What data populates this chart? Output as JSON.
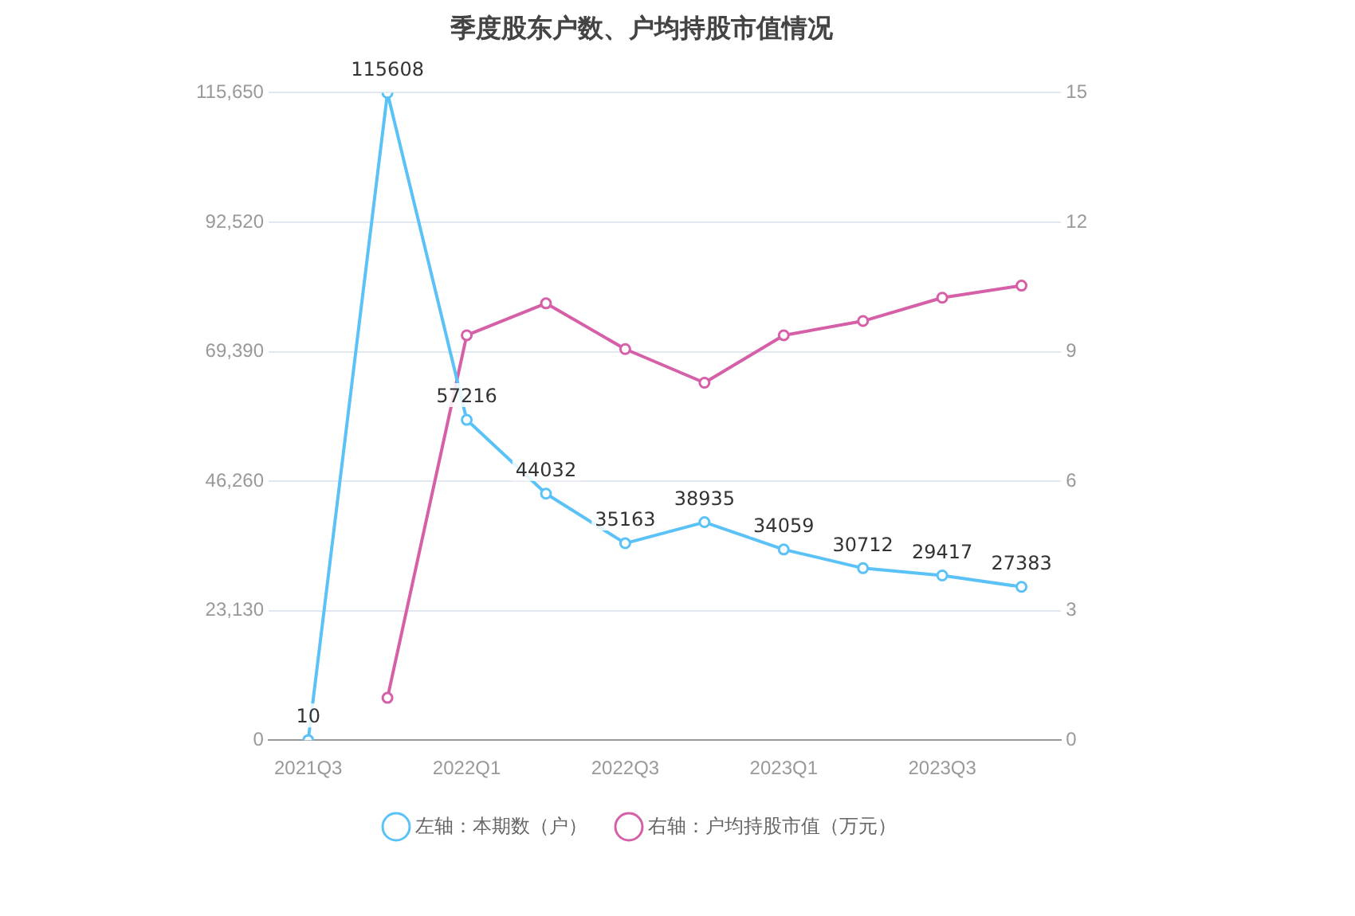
{
  "chart_data": {
    "type": "line",
    "title": "季度股东户数、户均持股市值情况",
    "categories": [
      "2021Q3",
      null,
      "2022Q1",
      null,
      "2022Q3",
      null,
      "2023Q1",
      null,
      "2023Q3",
      null
    ],
    "series": [
      {
        "name": "左轴：本期数（户）",
        "color": "#5bc2f7",
        "values": [
          10,
          115608,
          57216,
          44032,
          35163,
          38935,
          34059,
          30712,
          29417,
          27383
        ],
        "value_labels": [
          "10",
          "115608",
          "57216",
          "44032",
          "35163",
          "38935",
          "34059",
          "30712",
          "29417",
          "27383"
        ]
      },
      {
        "name": "右轴：户均持股市值（万元）",
        "color": "#d660a8",
        "axis": "y2",
        "values": [
          null,
          0.98,
          9.38,
          10.12,
          9.06,
          8.28,
          9.38,
          9.71,
          10.25,
          10.53
        ]
      }
    ],
    "ylim": [
      0,
      115650
    ],
    "yticks": [
      0,
      {
        "value": 23130,
        "label": "23,130"
      },
      {
        "value": 46260,
        "label": "46,260"
      },
      {
        "value": 69390,
        "label": "69,390"
      },
      {
        "value": 92520,
        "label": "92,520"
      },
      {
        "value": 115650,
        "label": "115,650"
      }
    ],
    "y2lim": [
      0,
      15
    ],
    "y2ticks": [
      0,
      3,
      6,
      9,
      12,
      15
    ],
    "grid": "y",
    "legend": "bottom",
    "marker": "circle",
    "line_style": "solid"
  }
}
